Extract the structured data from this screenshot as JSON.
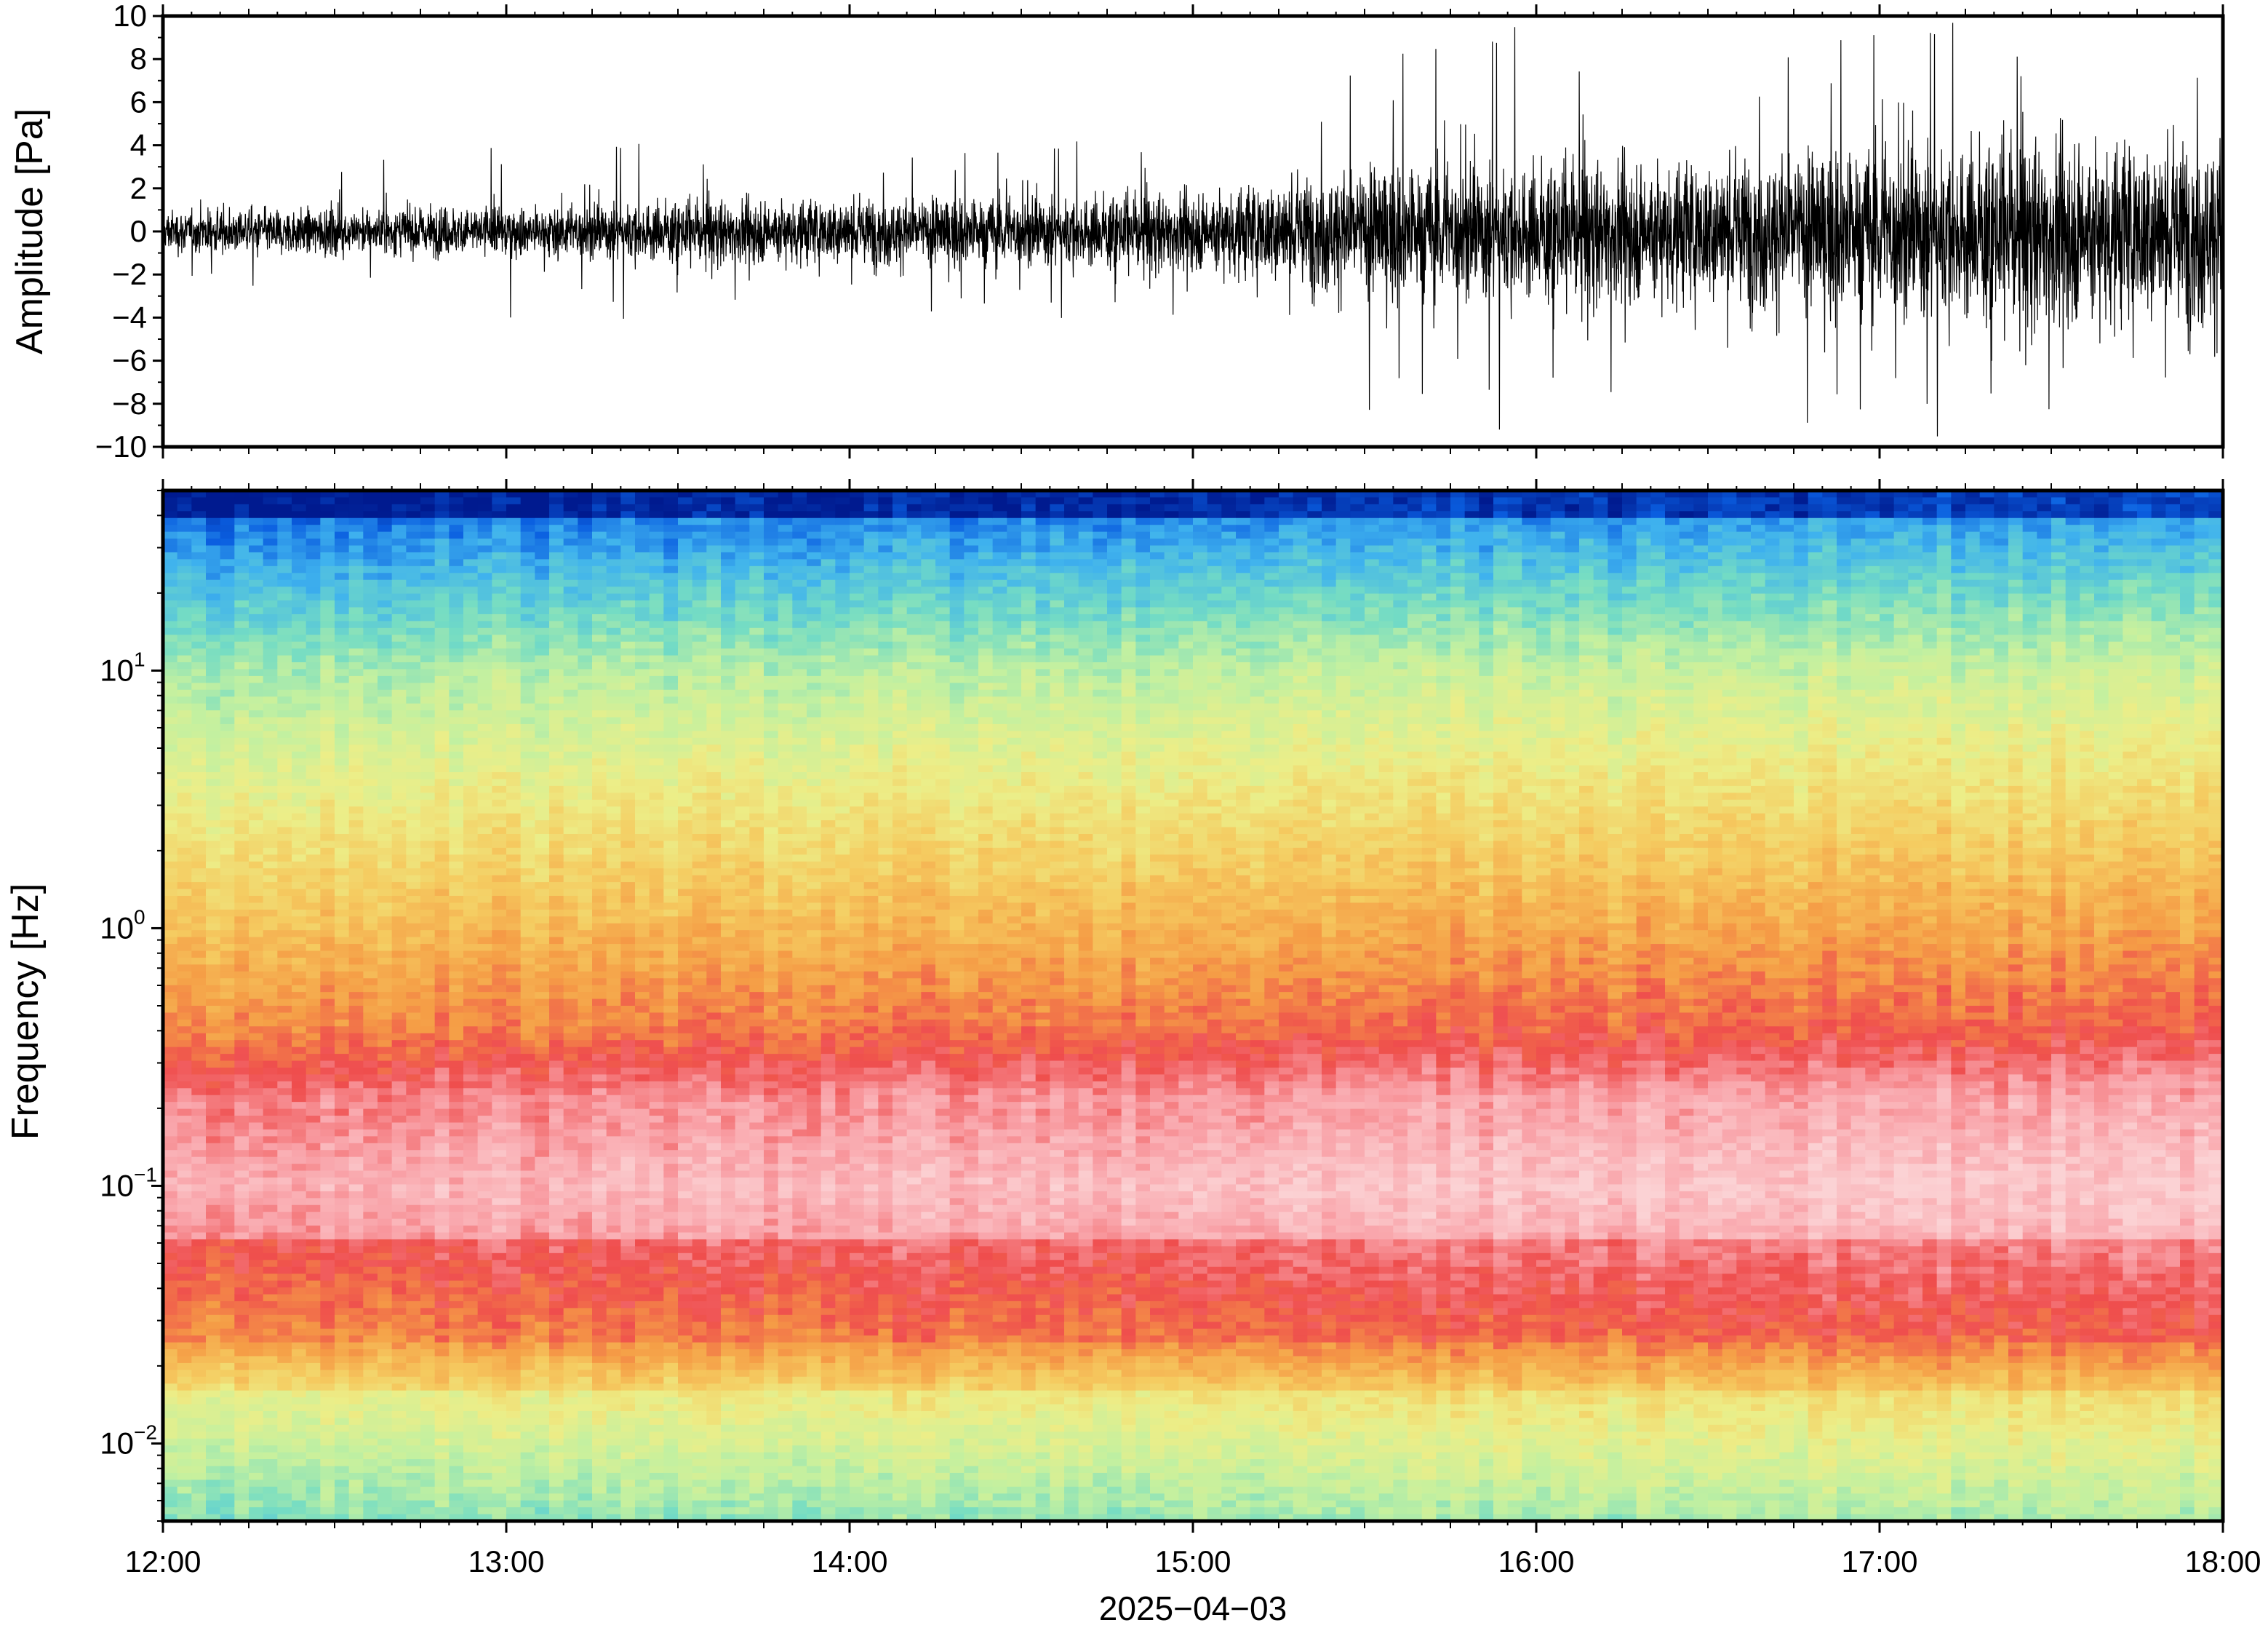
{
  "chart_data": [
    {
      "type": "line",
      "ylabel": "Amplitude [Pa]",
      "ylim": [
        -10,
        10
      ],
      "yticks": [
        "10",
        "8",
        "6",
        "4",
        "2",
        "0",
        "−2",
        "−4",
        "−6",
        "−8",
        "−10"
      ],
      "ytick_values": [
        10,
        8,
        6,
        4,
        2,
        0,
        -2,
        -4,
        -6,
        -8,
        -10
      ],
      "xlim": [
        "12:00",
        "18:00"
      ],
      "grid": false,
      "color": "#000000",
      "series": [
        {
          "values_note_hours": [
            12.0,
            12.5,
            13.0,
            13.5,
            14.0,
            14.5,
            15.0,
            15.5,
            16.0,
            16.5,
            17.0,
            17.5,
            18.0
          ],
          "envelope_pa": [
            1.2,
            1.3,
            1.5,
            1.8,
            2.0,
            2.0,
            2.3,
            3.8,
            4.0,
            4.3,
            5.0,
            5.5,
            5.5
          ],
          "peak_pa": [
            3,
            3,
            5,
            4,
            4,
            4,
            5,
            9,
            10,
            9,
            10,
            10,
            10
          ]
        }
      ]
    },
    {
      "type": "heatmap",
      "ylabel": "Frequency [Hz]",
      "yscale": "log",
      "ylim": [
        0.005,
        50
      ],
      "yticks": [
        {
          "base": "10",
          "exp": "1",
          "value": 10
        },
        {
          "base": "10",
          "exp": "0",
          "value": 1
        },
        {
          "base": "10",
          "exp": "−1",
          "value": 0.1
        },
        {
          "base": "10",
          "exp": "−2",
          "value": 0.01
        }
      ],
      "xlabel": "2025−04−03",
      "xticks": [
        "12:00",
        "13:00",
        "14:00",
        "15:00",
        "16:00",
        "17:00",
        "18:00"
      ],
      "xtick_hours": [
        12,
        13,
        14,
        15,
        16,
        17,
        18
      ],
      "colormap": [
        "#001a8f",
        "#0a5ee0",
        "#3fb2ee",
        "#74dcc4",
        "#c3f0a0",
        "#ecee88",
        "#f5cb60",
        "#f59d46",
        "#ef4d4d",
        "#f9a2a8",
        "#fbd2d4"
      ],
      "grid": false
    }
  ]
}
